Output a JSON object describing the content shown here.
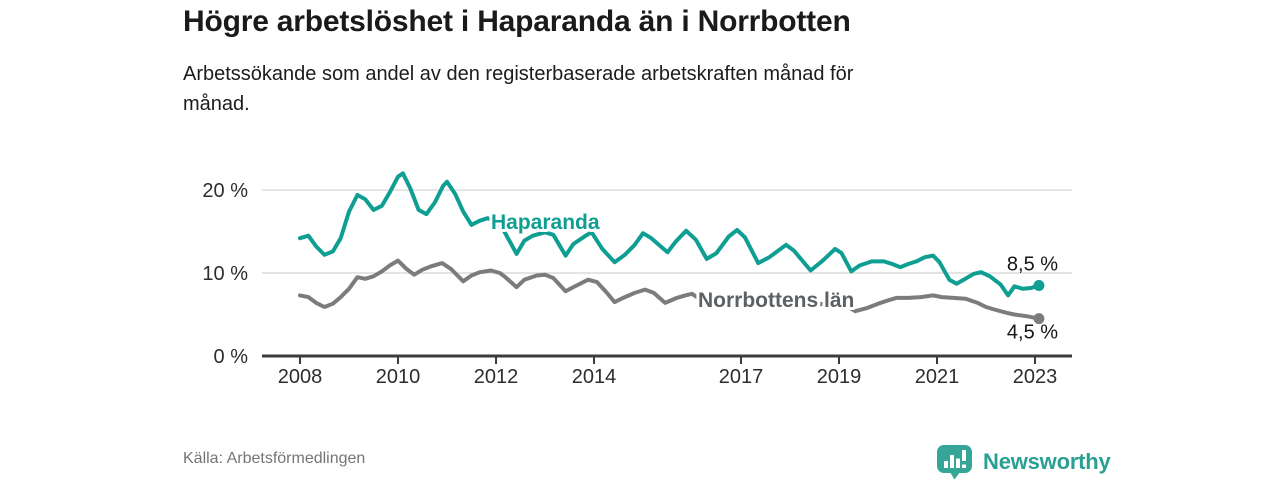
{
  "header": {
    "title": "Högre arbetslöshet i Haparanda än i Norrbotten",
    "subtitle_lines": [
      "Arbetssökande som andel av den registerbaserade arbetskraften månad för",
      "månad."
    ]
  },
  "footer": {
    "source": "Källa: Arbetsförmedlingen",
    "logo_text": "Newsworthy"
  },
  "colors": {
    "accent_teal": "#0f9e92",
    "line_gray": "#7c7c7c",
    "logo_teal": "#2a9f93",
    "grid": "#dcdcdc",
    "axis": "#3b3b3b",
    "tick_label": "#2d2d2d",
    "end_label": "#161616"
  },
  "chart_data": {
    "type": "line",
    "title": "Högre arbetslöshet i Haparanda än i Norrbotten",
    "subtitle": "Arbetssökande som andel av den registerbaserade arbetskraften månad för månad.",
    "source": "Källa: Arbetsförmedlingen",
    "xlabel": "",
    "ylabel": "",
    "grid": "horizontal",
    "legend_position": "inline-labels",
    "x_ticks": [
      2008,
      2010,
      2012,
      2014,
      2017,
      2019,
      2021,
      2023
    ],
    "y_ticks": [
      0,
      10,
      20
    ],
    "y_tick_suffix": " %",
    "xlim": [
      2007.224,
      2023.755
    ],
    "ylim": [
      0,
      24.1
    ],
    "series": [
      {
        "name": "Haparanda",
        "color": "#0f9e92",
        "label_color": "#0f9e92",
        "end_label": "8,5 %",
        "end_value": 8.5,
        "points": [
          [
            2008.0,
            14.2
          ],
          [
            2008.17,
            14.5
          ],
          [
            2008.33,
            13.2
          ],
          [
            2008.5,
            12.2
          ],
          [
            2008.67,
            12.6
          ],
          [
            2008.83,
            14.2
          ],
          [
            2009.0,
            17.4
          ],
          [
            2009.17,
            19.4
          ],
          [
            2009.33,
            18.9
          ],
          [
            2009.5,
            17.6
          ],
          [
            2009.67,
            18.1
          ],
          [
            2009.83,
            19.7
          ],
          [
            2010.0,
            21.6
          ],
          [
            2010.1,
            22.0
          ],
          [
            2010.25,
            20.2
          ],
          [
            2010.42,
            17.6
          ],
          [
            2010.58,
            17.1
          ],
          [
            2010.75,
            18.5
          ],
          [
            2010.92,
            20.5
          ],
          [
            2011.0,
            21.0
          ],
          [
            2011.17,
            19.5
          ],
          [
            2011.33,
            17.4
          ],
          [
            2011.5,
            15.8
          ],
          [
            2011.67,
            16.3
          ],
          [
            2011.83,
            16.6
          ],
          [
            2012.0,
            16.2
          ],
          [
            2012.17,
            15.0
          ],
          [
            2012.42,
            12.3
          ],
          [
            2012.58,
            13.9
          ],
          [
            2012.75,
            14.5
          ],
          [
            2013.0,
            14.9
          ],
          [
            2013.17,
            14.6
          ],
          [
            2013.42,
            12.1
          ],
          [
            2013.58,
            13.5
          ],
          [
            2013.83,
            14.5
          ],
          [
            2013.95,
            14.9
          ],
          [
            2014.17,
            12.9
          ],
          [
            2014.42,
            11.3
          ],
          [
            2014.63,
            12.2
          ],
          [
            2014.83,
            13.4
          ],
          [
            2015.0,
            14.8
          ],
          [
            2015.17,
            14.2
          ],
          [
            2015.5,
            12.5
          ],
          [
            2015.67,
            13.8
          ],
          [
            2015.88,
            15.1
          ],
          [
            2016.08,
            14.0
          ],
          [
            2016.3,
            11.7
          ],
          [
            2016.5,
            12.4
          ],
          [
            2016.75,
            14.4
          ],
          [
            2016.92,
            15.2
          ],
          [
            2017.08,
            14.3
          ],
          [
            2017.35,
            11.2
          ],
          [
            2017.58,
            11.9
          ],
          [
            2017.92,
            13.4
          ],
          [
            2018.08,
            12.7
          ],
          [
            2018.42,
            10.3
          ],
          [
            2018.67,
            11.5
          ],
          [
            2018.92,
            12.9
          ],
          [
            2019.05,
            12.4
          ],
          [
            2019.25,
            10.2
          ],
          [
            2019.42,
            10.9
          ],
          [
            2019.67,
            11.4
          ],
          [
            2019.92,
            11.4
          ],
          [
            2020.08,
            11.1
          ],
          [
            2020.25,
            10.7
          ],
          [
            2020.42,
            11.1
          ],
          [
            2020.58,
            11.4
          ],
          [
            2020.75,
            11.9
          ],
          [
            2020.92,
            12.1
          ],
          [
            2021.05,
            11.3
          ],
          [
            2021.25,
            9.2
          ],
          [
            2021.4,
            8.7
          ],
          [
            2021.58,
            9.3
          ],
          [
            2021.75,
            9.9
          ],
          [
            2021.9,
            10.1
          ],
          [
            2022.08,
            9.6
          ],
          [
            2022.3,
            8.6
          ],
          [
            2022.45,
            7.3
          ],
          [
            2022.58,
            8.4
          ],
          [
            2022.75,
            8.1
          ],
          [
            2022.92,
            8.2
          ],
          [
            2023.08,
            8.5
          ]
        ]
      },
      {
        "name": "Norrbottens län",
        "color": "#7c7c7c",
        "label_color": "#5c6164",
        "end_label": "4,5 %",
        "end_value": 4.5,
        "points": [
          [
            2008.0,
            7.3
          ],
          [
            2008.17,
            7.1
          ],
          [
            2008.33,
            6.4
          ],
          [
            2008.5,
            5.9
          ],
          [
            2008.67,
            6.3
          ],
          [
            2008.83,
            7.1
          ],
          [
            2009.0,
            8.1
          ],
          [
            2009.17,
            9.5
          ],
          [
            2009.33,
            9.3
          ],
          [
            2009.5,
            9.6
          ],
          [
            2009.67,
            10.2
          ],
          [
            2009.83,
            10.9
          ],
          [
            2010.0,
            11.5
          ],
          [
            2010.17,
            10.5
          ],
          [
            2010.33,
            9.8
          ],
          [
            2010.5,
            10.4
          ],
          [
            2010.67,
            10.8
          ],
          [
            2010.9,
            11.2
          ],
          [
            2011.08,
            10.5
          ],
          [
            2011.33,
            9.0
          ],
          [
            2011.5,
            9.7
          ],
          [
            2011.67,
            10.1
          ],
          [
            2011.9,
            10.3
          ],
          [
            2012.08,
            10.0
          ],
          [
            2012.17,
            9.6
          ],
          [
            2012.42,
            8.3
          ],
          [
            2012.58,
            9.2
          ],
          [
            2012.83,
            9.7
          ],
          [
            2013.0,
            9.8
          ],
          [
            2013.17,
            9.4
          ],
          [
            2013.42,
            7.8
          ],
          [
            2013.58,
            8.3
          ],
          [
            2013.88,
            9.2
          ],
          [
            2014.06,
            8.9
          ],
          [
            2014.25,
            7.7
          ],
          [
            2014.42,
            6.5
          ],
          [
            2014.63,
            7.1
          ],
          [
            2014.83,
            7.6
          ],
          [
            2015.04,
            8.0
          ],
          [
            2015.22,
            7.6
          ],
          [
            2015.45,
            6.4
          ],
          [
            2015.69,
            7.0
          ],
          [
            2015.86,
            7.3
          ],
          [
            2016.0,
            7.5
          ],
          [
            2016.2,
            6.7
          ],
          [
            2016.37,
            6.1
          ],
          [
            2016.61,
            6.7
          ],
          [
            2016.82,
            7.1
          ],
          [
            2017.0,
            7.2
          ],
          [
            2017.4,
            6.2
          ],
          [
            2017.58,
            6.6
          ],
          [
            2017.92,
            7.2
          ],
          [
            2018.08,
            7.0
          ],
          [
            2018.42,
            6.0
          ],
          [
            2018.67,
            6.3
          ],
          [
            2018.92,
            6.6
          ],
          [
            2019.08,
            6.3
          ],
          [
            2019.33,
            5.4
          ],
          [
            2019.58,
            5.8
          ],
          [
            2019.8,
            6.3
          ],
          [
            2020.0,
            6.7
          ],
          [
            2020.17,
            7.0
          ],
          [
            2020.42,
            7.0
          ],
          [
            2020.67,
            7.1
          ],
          [
            2020.92,
            7.3
          ],
          [
            2021.1,
            7.1
          ],
          [
            2021.33,
            7.0
          ],
          [
            2021.58,
            6.9
          ],
          [
            2021.83,
            6.4
          ],
          [
            2022.0,
            5.9
          ],
          [
            2022.17,
            5.6
          ],
          [
            2022.42,
            5.2
          ],
          [
            2022.58,
            5.0
          ],
          [
            2022.83,
            4.8
          ],
          [
            2023.0,
            4.6
          ],
          [
            2023.08,
            4.5
          ]
        ]
      }
    ]
  }
}
